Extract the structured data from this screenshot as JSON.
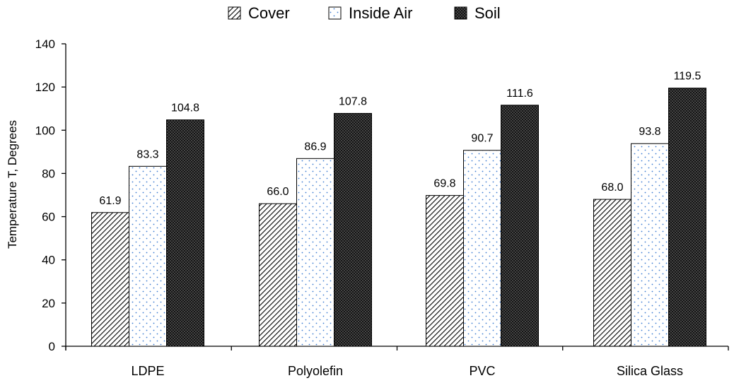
{
  "chart_data": {
    "type": "bar",
    "categories": [
      "LDPE",
      "Polyolefin",
      "PVC",
      "Silica Glass"
    ],
    "series": [
      {
        "name": "Cover",
        "values": [
          61.9,
          66.0,
          69.8,
          68.0
        ],
        "labels": [
          "61.9",
          "66.0",
          "69.8",
          "68.0"
        ],
        "pattern": "diagonal-hatch"
      },
      {
        "name": "Inside Air",
        "values": [
          83.3,
          86.9,
          90.7,
          93.8
        ],
        "labels": [
          "83.3",
          "86.9",
          "90.7",
          "93.8"
        ],
        "pattern": "blue-dots"
      },
      {
        "name": "Soil",
        "values": [
          104.8,
          107.8,
          111.6,
          119.5
        ],
        "labels": [
          "104.8",
          "107.8",
          "111.6",
          "119.5"
        ],
        "pattern": "dense-dark-dots"
      }
    ],
    "title": "",
    "xlabel": "",
    "ylabel": "Temperature T, Degrees",
    "ylim": [
      0,
      140
    ],
    "yticks": [
      0,
      20,
      40,
      60,
      80,
      100,
      120,
      140
    ],
    "ytick_labels": [
      "0",
      "20",
      "40",
      "60",
      "80",
      "100",
      "120",
      "140"
    ],
    "grid": false,
    "legend": "top-center"
  },
  "colors": {
    "axis": "#000000",
    "text": "#000000",
    "dot_blue": "#3d7bd1",
    "dark_fill": "#141414"
  }
}
